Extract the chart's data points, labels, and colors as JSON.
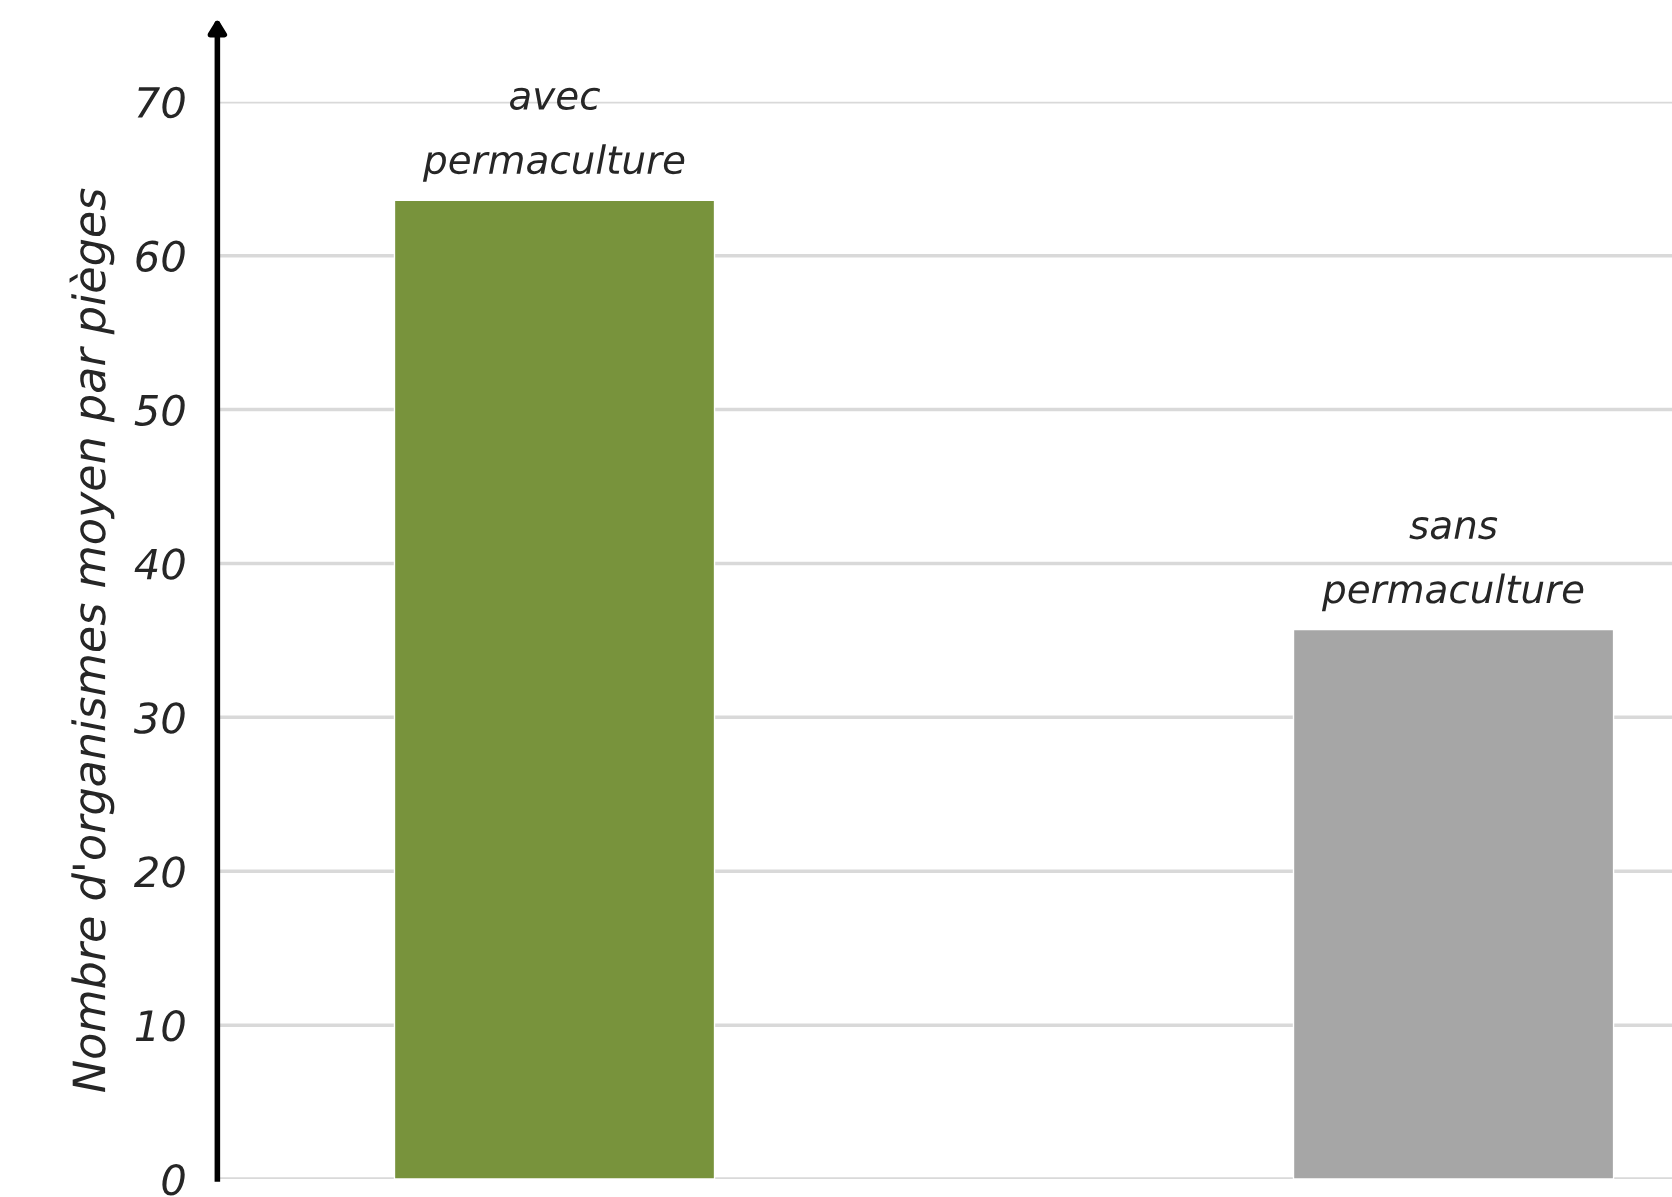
{
  "chart_data": {
    "type": "bar",
    "ylabel": "Nombre d'organismes moyen par pièges",
    "categories": [
      "avec\npermaculture",
      "sans\npermaculture"
    ],
    "values": [
      63.6,
      35.7
    ],
    "colors": [
      "#78933c",
      "#a6a6a6"
    ],
    "ylim": [
      0,
      70
    ],
    "yticks": [
      0,
      10,
      20,
      30,
      40,
      50,
      60,
      70
    ],
    "grid": "y",
    "tick_labels": "y"
  }
}
